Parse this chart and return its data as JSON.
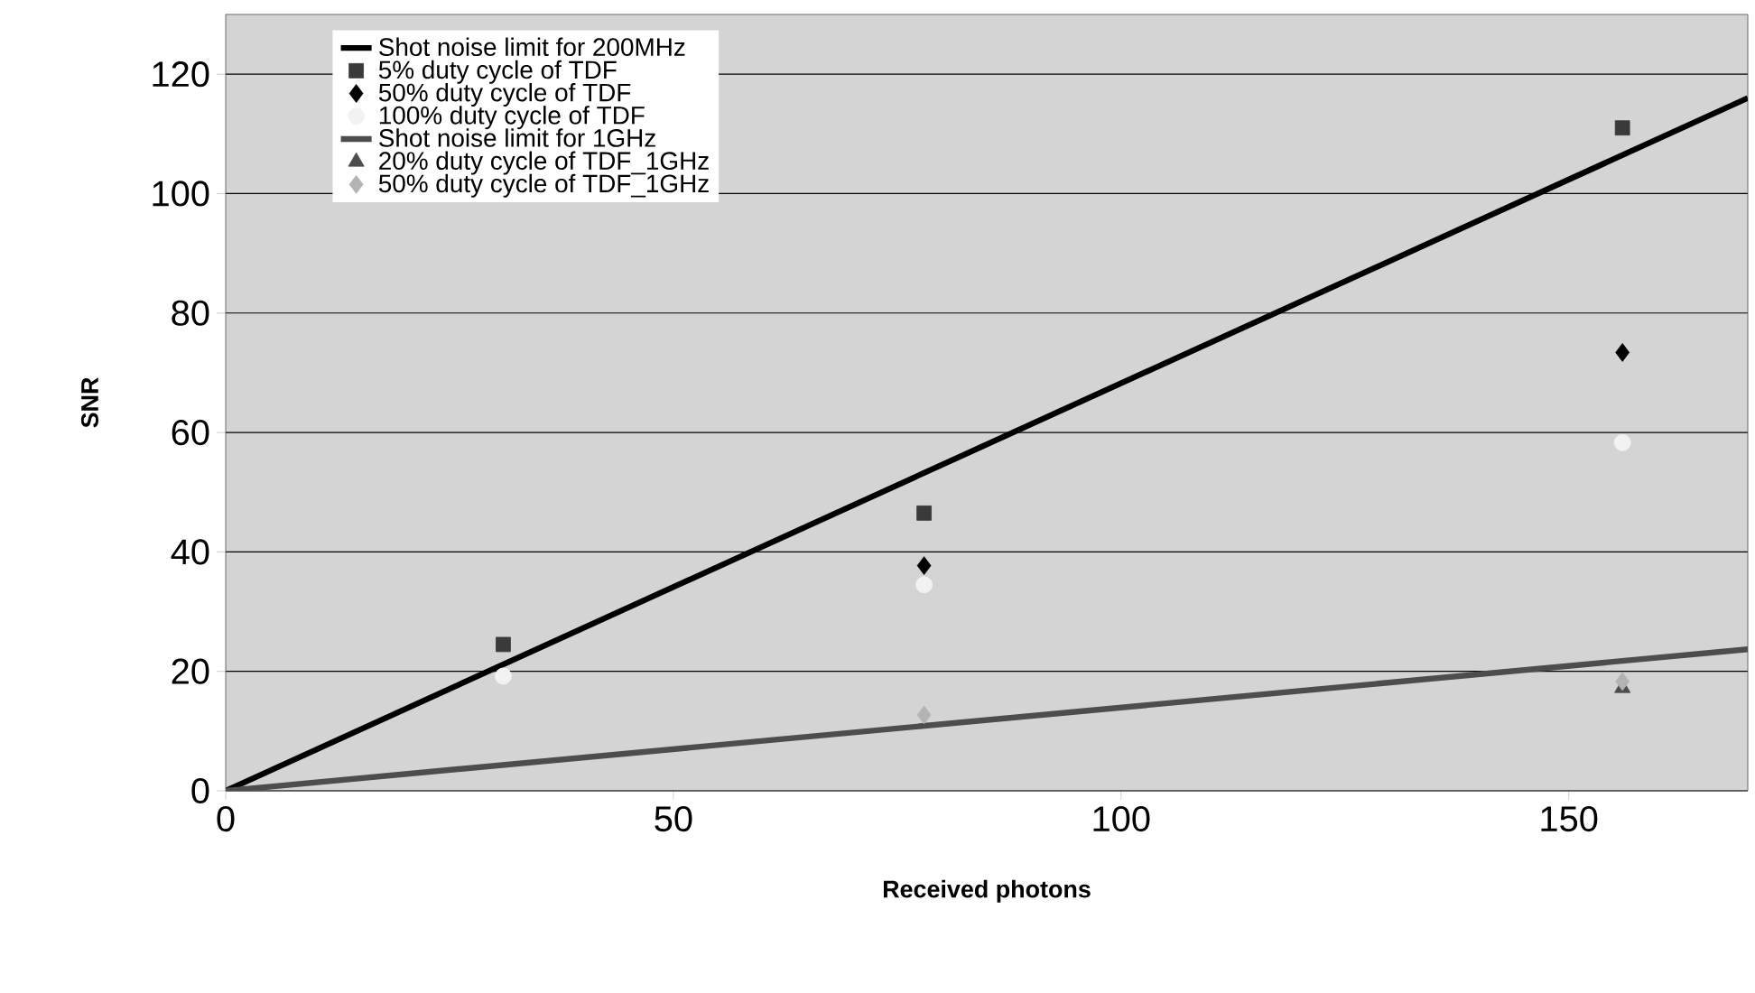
{
  "chart_data": {
    "type": "scatter",
    "xlabel": "Received photons",
    "ylabel": "SNR",
    "xlim": [
      0,
      170
    ],
    "ylim": [
      0,
      130
    ],
    "xticks": [
      0,
      50,
      100,
      150
    ],
    "yticks": [
      0,
      20,
      40,
      60,
      80,
      100,
      120
    ],
    "grid": "y",
    "legend": "top left",
    "series": [
      {
        "name": "Shot noise limit for 200MHz",
        "type": "line",
        "color": "#000000",
        "marker": "none",
        "x": [
          0,
          170
        ],
        "values": [
          0,
          116
        ]
      },
      {
        "name": "5% duty cycle of TDF",
        "color": "#3a3a3a",
        "marker": "square",
        "x": [
          31,
          78,
          156
        ],
        "values": [
          24.5,
          46.5,
          111
        ]
      },
      {
        "name": "50% duty cycle of TDF",
        "color": "#000000",
        "marker": "diamond",
        "x": [
          78,
          156
        ],
        "values": [
          37.7,
          73.4
        ]
      },
      {
        "name": "100% duty cycle of TDF",
        "color": "#f2f2f2",
        "marker": "circle",
        "x": [
          31,
          78,
          156
        ],
        "values": [
          19.2,
          34.5,
          58.3
        ]
      },
      {
        "name": "Shot noise limit for 1GHz",
        "type": "line",
        "color": "#4d4d4d",
        "marker": "none",
        "x": [
          0,
          170
        ],
        "values": [
          0,
          23.7
        ]
      },
      {
        "name": "20% duty cycle of TDF_1GHz",
        "color": "#4d4d4d",
        "marker": "triangle",
        "x": [
          156
        ],
        "values": [
          17.2
        ]
      },
      {
        "name": "50% duty cycle of TDF_1GHz",
        "color": "#b3b3b3",
        "marker": "diamond",
        "x": [
          78,
          156
        ],
        "values": [
          12.7,
          18.3
        ]
      }
    ]
  }
}
